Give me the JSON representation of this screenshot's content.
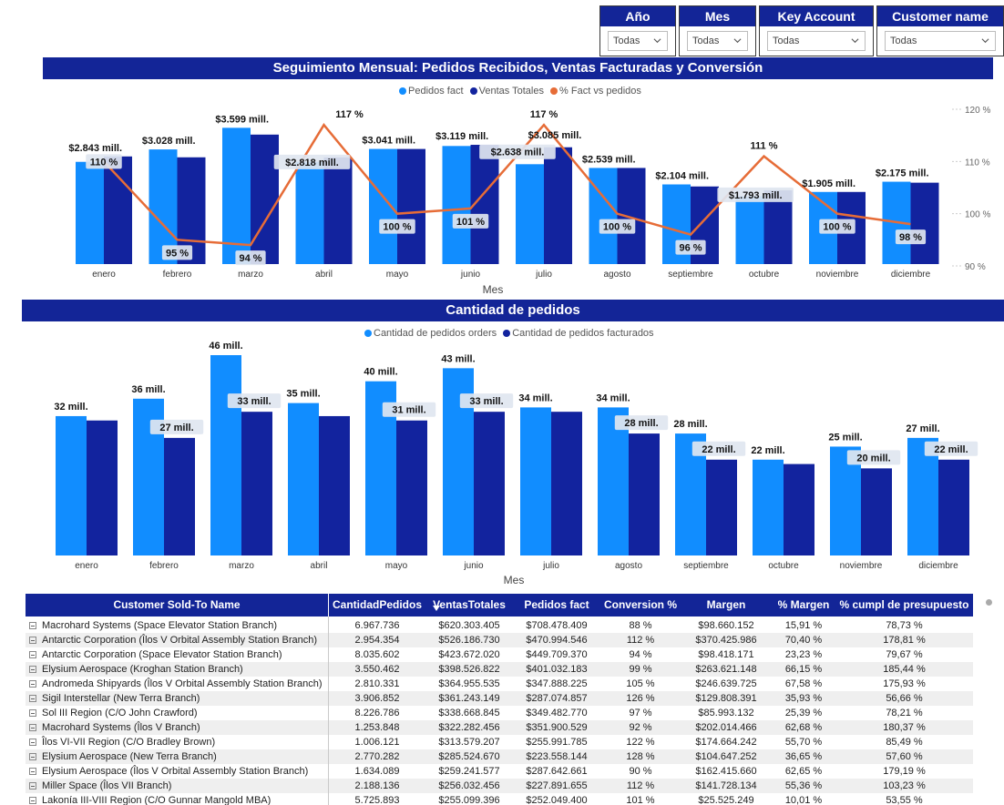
{
  "slicers": [
    {
      "label": "Año",
      "value": "Todas"
    },
    {
      "label": "Mes",
      "value": "Todas"
    },
    {
      "label": "Key Account",
      "value": "Todas"
    },
    {
      "label": "Customer name",
      "value": "Todas"
    }
  ],
  "chart1": {
    "title": "Seguimiento Mensual: Pedidos Recibidos, Ventas Facturadas y Conversión",
    "legend": [
      "Pedidos fact",
      "Ventas Totales",
      "% Fact vs pedidos"
    ],
    "xlabel": "Mes",
    "y2_ticks": [
      "120 %",
      "110 %",
      "100 %",
      "90 %"
    ]
  },
  "chart2": {
    "title": "Cantidad de pedidos",
    "legend": [
      "Cantidad de pedidos orders",
      "Cantidad de pedidos facturados"
    ],
    "xlabel": "Mes"
  },
  "chart_data": [
    {
      "type": "bar",
      "title": "Seguimiento Mensual: Pedidos Recibidos, Ventas Facturadas y Conversión",
      "xlabel": "Mes",
      "categories": [
        "enero",
        "febrero",
        "marzo",
        "abril",
        "mayo",
        "junio",
        "julio",
        "agosto",
        "septiembre",
        "octubre",
        "noviembre",
        "diciembre"
      ],
      "series": [
        {
          "name": "Pedidos fact",
          "values": [
            2.7,
            3.028,
            3.599,
            2.7,
            3.041,
            3.119,
            2.638,
            2.539,
            2.104,
            1.793,
            1.905,
            2.175
          ]
        },
        {
          "name": "Ventas Totales",
          "values": [
            2.843,
            2.82,
            3.42,
            2.818,
            3.04,
            3.15,
            3.085,
            2.539,
            2.05,
            1.95,
            1.905,
            2.15
          ]
        },
        {
          "name": "% Fact vs pedidos",
          "values": [
            110,
            95,
            94,
            117,
            100,
            101,
            117,
            100,
            96,
            111,
            100,
            98
          ]
        }
      ],
      "value_labels": [
        "$2.843 mill.",
        "$3.028 mill.",
        "$3.599 mill.",
        "$2.818 mill.",
        "$3.041 mill.",
        "$3.119 mill.",
        "$2.638 mill.",
        "$2.539 mill.",
        "$2.104 mill.",
        "$1.793 mill.",
        "$1.905 mill.",
        "$2.175 mill."
      ],
      "extra_labels": [
        {
          "month": "julio",
          "text": "$3.085 mill."
        }
      ],
      "pct_labels": [
        "110 %",
        "95 %",
        "94 %",
        "117 %",
        "100 %",
        "101 %",
        "117 %",
        "100 %",
        "96 %",
        "111 %",
        "100 %",
        "98 %"
      ],
      "ylim": [
        0,
        3.8
      ],
      "y2lim": [
        90,
        120
      ],
      "legend_position": "top-center",
      "colors": {
        "pedidos": "#118dff",
        "ventas": "#12239e",
        "pct": "#e66c37"
      }
    },
    {
      "type": "bar",
      "title": "Cantidad de pedidos",
      "xlabel": "Mes",
      "categories": [
        "enero",
        "febrero",
        "marzo",
        "abril",
        "mayo",
        "junio",
        "julio",
        "agosto",
        "septiembre",
        "octubre",
        "noviembre",
        "diciembre"
      ],
      "series": [
        {
          "name": "Cantidad de pedidos orders",
          "values": [
            32,
            36,
            46,
            35,
            40,
            43,
            34,
            34,
            28,
            22,
            25,
            27
          ]
        },
        {
          "name": "Cantidad de pedidos facturados",
          "values": [
            31,
            27,
            33,
            32,
            31,
            33,
            33,
            28,
            22,
            21,
            20,
            22
          ]
        }
      ],
      "labels_orders": [
        "32 mill.",
        "36 mill.",
        "46 mill.",
        "35 mill.",
        "40 mill.",
        "43 mill.",
        "34 mill.",
        "34 mill.",
        "28 mill.",
        "22 mill.",
        "25 mill.",
        "27 mill."
      ],
      "labels_fact": [
        "",
        "27 mill.",
        "33 mill.",
        "",
        "31 mill.",
        "33 mill.",
        "",
        "28 mill.",
        "22 mill.",
        "",
        "20 mill.",
        "22 mill."
      ],
      "ylim": [
        0,
        50
      ],
      "legend_position": "top-center",
      "colors": {
        "orders": "#118dff",
        "fact": "#12239e"
      }
    }
  ],
  "table": {
    "headers": [
      "Customer Sold-To Name",
      "CantidadPedidos",
      "VentasTotales",
      "Pedidos fact",
      "Conversion %",
      "Margen",
      "% Margen",
      "% cumpl de presupuesto"
    ],
    "rows": [
      [
        "Macrohard Systems (Space Elevator Station Branch)",
        "6.967.736",
        "$620.303.405",
        "$708.478.409",
        "88 %",
        "$98.660.152",
        "15,91 %",
        "78,73 %"
      ],
      [
        "Antarctic Corporation (Îlos V Orbital Assembly Station Branch)",
        "2.954.354",
        "$526.186.730",
        "$470.994.546",
        "112 %",
        "$370.425.986",
        "70,40 %",
        "178,81 %"
      ],
      [
        "Antarctic Corporation (Space Elevator Station Branch)",
        "8.035.602",
        "$423.672.020",
        "$449.709.370",
        "94 %",
        "$98.418.171",
        "23,23 %",
        "79,67 %"
      ],
      [
        "Elysium Aerospace (Kroghan Station Branch)",
        "3.550.462",
        "$398.526.822",
        "$401.032.183",
        "99 %",
        "$263.621.148",
        "66,15 %",
        "185,44 %"
      ],
      [
        "Andromeda Shipyards (Îlos V Orbital Assembly Station Branch)",
        "2.810.331",
        "$364.955.535",
        "$347.888.225",
        "105 %",
        "$246.639.725",
        "67,58 %",
        "175,93 %"
      ],
      [
        "Sigil Interstellar (New Terra Branch)",
        "3.906.852",
        "$361.243.149",
        "$287.074.857",
        "126 %",
        "$129.808.391",
        "35,93 %",
        "56,66 %"
      ],
      [
        "Sol III Region (C/O John Crawford)",
        "8.226.786",
        "$338.668.845",
        "$349.482.770",
        "97 %",
        "$85.993.132",
        "25,39 %",
        "78,21 %"
      ],
      [
        "Macrohard Systems (Îlos V Branch)",
        "1.253.848",
        "$322.282.456",
        "$351.900.529",
        "92 %",
        "$202.014.466",
        "62,68 %",
        "180,37 %"
      ],
      [
        "Îlos VI-VII Region (C/O Bradley Brown)",
        "1.006.121",
        "$313.579.207",
        "$255.991.785",
        "122 %",
        "$174.664.242",
        "55,70 %",
        "85,49 %"
      ],
      [
        "Elysium Aerospace (New Terra Branch)",
        "2.770.282",
        "$285.524.670",
        "$223.558.144",
        "128 %",
        "$104.647.252",
        "36,65 %",
        "57,60 %"
      ],
      [
        "Elysium Aerospace (Îlos V Orbital Assembly Station Branch)",
        "1.634.089",
        "$259.241.577",
        "$287.642.661",
        "90 %",
        "$162.415.660",
        "62,65 %",
        "179,19 %"
      ],
      [
        "Miller Space (Îlos VII Branch)",
        "2.188.136",
        "$256.032.456",
        "$227.891.655",
        "112 %",
        "$141.728.134",
        "55,36 %",
        "103,23 %"
      ],
      [
        "Lakonía III-VIII Region (C/O Gunnar Mangold MBA)",
        "5.725.893",
        "$255.099.396",
        "$252.049.400",
        "101 %",
        "$25.525.249",
        "10,01 %",
        "53,55 %"
      ]
    ]
  }
}
